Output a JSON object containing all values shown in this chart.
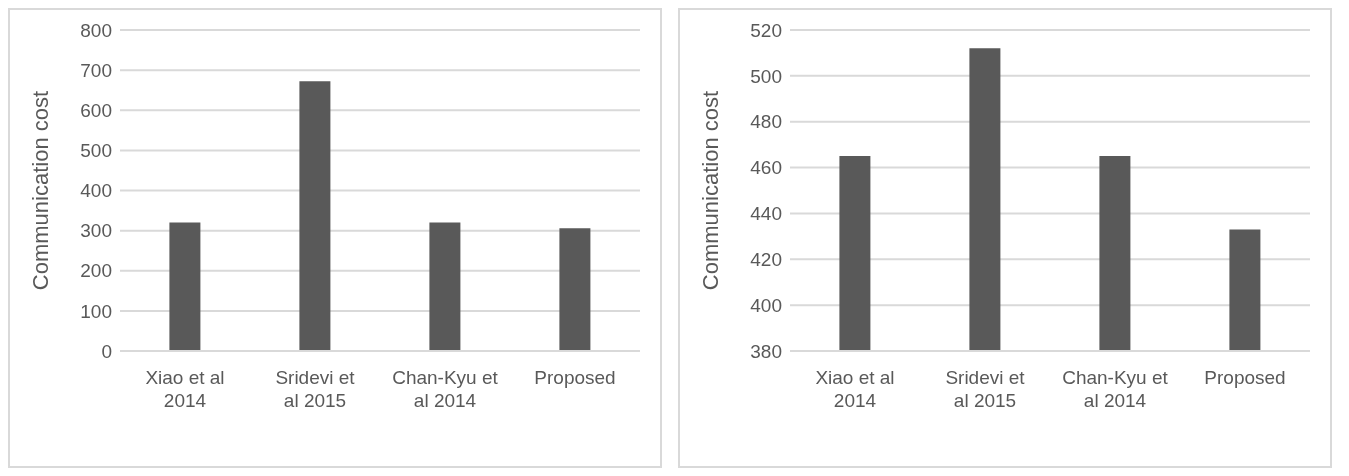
{
  "chart_data": [
    {
      "type": "bar",
      "ylabel": "Communication cost",
      "categories": [
        "Xiao et al 2014",
        "Sridevi et al 2015",
        "Chan-Kyu et al 2014",
        "Proposed"
      ],
      "values": [
        320,
        672,
        320,
        306
      ],
      "color": "#595959",
      "ylim": [
        0,
        800
      ],
      "yticks": [
        0,
        100,
        200,
        300,
        400,
        500,
        600,
        700,
        800
      ],
      "grid": "y"
    },
    {
      "type": "bar",
      "ylabel": "Communication cost",
      "categories": [
        "Xiao et al 2014",
        "Sridevi et al 2015",
        "Chan-Kyu et al 2014",
        "Proposed"
      ],
      "values": [
        465,
        512,
        465,
        433
      ],
      "color": "#595959",
      "ylim": [
        380,
        520
      ],
      "yticks": [
        380,
        400,
        420,
        440,
        460,
        480,
        500,
        520
      ],
      "grid": "y"
    }
  ]
}
